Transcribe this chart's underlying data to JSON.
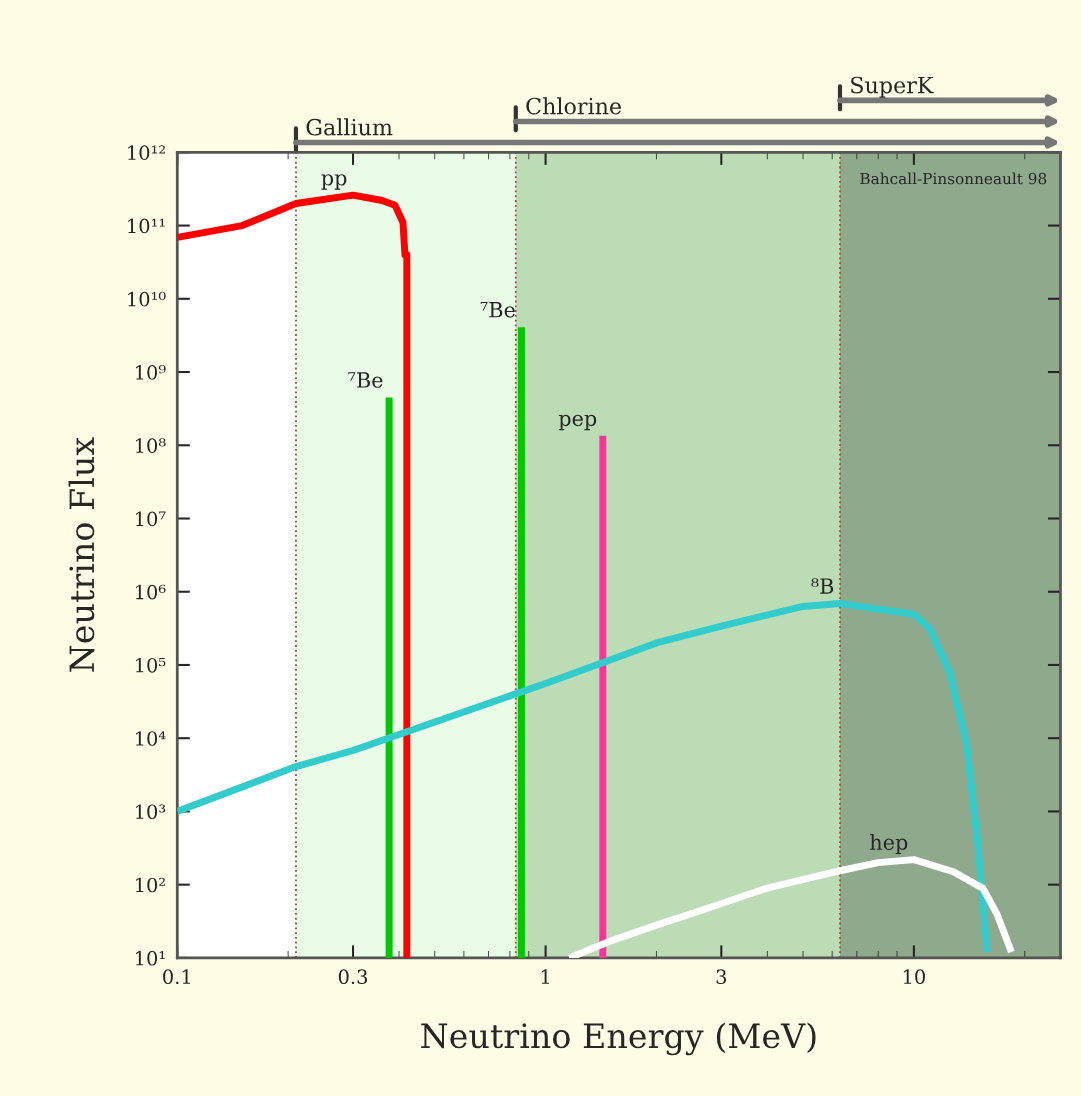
{
  "chart_data": {
    "type": "line",
    "xlabel": "Neutrino Energy (MeV)",
    "ylabel": "Neutrino Flux",
    "log": "xy",
    "grid": false,
    "legend": false,
    "line_style": "solid",
    "marker": "none",
    "xlim": [
      0.1,
      25
    ],
    "xticks": [
      0.1,
      0.3,
      1,
      3,
      10
    ],
    "ylim": [
      10,
      1000000000000.0
    ],
    "yticks": [
      {
        "value": 10,
        "label": "10¹"
      },
      {
        "value": 100,
        "label": "10²"
      },
      {
        "value": 1000,
        "label": "10³"
      },
      {
        "value": 10000,
        "label": "10⁴"
      },
      {
        "value": 100000,
        "label": "10⁵"
      },
      {
        "value": 1000000,
        "label": "10⁶"
      },
      {
        "value": 10000000,
        "label": "10⁷"
      },
      {
        "value": 100000000,
        "label": "10⁸"
      },
      {
        "value": 1000000000,
        "label": "10⁹"
      },
      {
        "value": 10000000000,
        "label": "10¹⁰"
      },
      {
        "value": 100000000000,
        "label": "10¹¹"
      },
      {
        "value": 1000000000000,
        "label": "10¹²"
      }
    ],
    "series": [
      {
        "name": "pp",
        "color": "#ff0000",
        "x": [
          0.1,
          0.15,
          0.21,
          0.3,
          0.36,
          0.39,
          0.41,
          0.415,
          0.42,
          0.42
        ],
        "values": [
          69000000000.0,
          100000000000.0,
          200000000000.0,
          260000000000.0,
          220000000000.0,
          190000000000.0,
          110000000000.0,
          40000000000.0,
          40000000000.0,
          10
        ]
      },
      {
        "name": "⁷Be",
        "color": "#00c800",
        "x": [
          0.376,
          0.376
        ],
        "values": [
          10,
          450000000.0
        ]
      },
      {
        "name": "⁷Be",
        "color": "#00c800",
        "x": [
          0.86,
          0.86
        ],
        "values": [
          10,
          4100000000.0
        ]
      },
      {
        "name": "pep",
        "color": "#ff3399",
        "x": [
          1.43,
          1.43
        ],
        "values": [
          10,
          135000000.0
        ]
      },
      {
        "name": "⁸B",
        "color": "#33cccc",
        "x": [
          0.1,
          0.21,
          0.3,
          1,
          2,
          3,
          5,
          6.3,
          10,
          11,
          12.5,
          13.9,
          14.9,
          15.8
        ],
        "values": [
          1000,
          4100,
          6800,
          56000,
          200000,
          340000,
          630000,
          690000,
          490000,
          320000,
          80000,
          8300,
          380,
          12
        ]
      },
      {
        "name": "hep",
        "color": "#ffffff",
        "x": [
          1.16,
          1.5,
          2,
          2.63,
          4,
          6.3,
          8,
          10,
          12.8,
          15.4,
          16.8,
          18.4
        ],
        "values": [
          10,
          17,
          28,
          44,
          90,
          155,
          200,
          220,
          150,
          89,
          40,
          12
        ]
      }
    ],
    "bands": [
      {
        "axis": "x",
        "from": 0.21,
        "to": 25,
        "label": "Gallium",
        "color": "#eafbe8"
      },
      {
        "axis": "x",
        "from": 0.83,
        "to": 25,
        "label": "Chlorine",
        "color": "#bcdcb6"
      },
      {
        "axis": "x",
        "from": 6.3,
        "to": 25,
        "label": "SuperK",
        "color": "#8fa98c"
      }
    ],
    "ref_lines": [
      {
        "axis": "x",
        "value": 0.21,
        "color": "#a0522d",
        "line_style": "dotted"
      },
      {
        "axis": "x",
        "value": 0.83,
        "color": "#a0522d",
        "line_style": "dotted"
      },
      {
        "axis": "x",
        "value": 6.3,
        "color": "#a0522d",
        "line_style": "dotted"
      }
    ],
    "annotations": [
      "Bahcall-Pinsonneault 98"
    ]
  }
}
